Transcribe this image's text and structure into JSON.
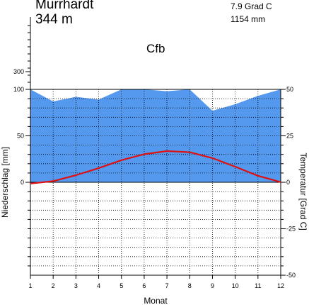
{
  "header": {
    "station": "Murrhardt",
    "elevation": "344 m",
    "mean_temperature": "7.9 Grad C",
    "annual_precipitation": "1154 mm",
    "climate_class": "Cfb"
  },
  "colors": {
    "precipitation_fill": "#5599ee",
    "temperature_line": "#dd1111",
    "axes": "#000000",
    "grid": "#000000"
  },
  "chart_data": {
    "type": "area",
    "title": "",
    "xlabel": "Monat",
    "ylabel_left": "Niederschlag [mm]",
    "ylabel_right": "Temperatur [Grad C]",
    "x": [
      1,
      2,
      3,
      4,
      5,
      6,
      7,
      8,
      9,
      10,
      11,
      12
    ],
    "x_ticks": [
      "1",
      "2",
      "3",
      "4",
      "5",
      "6",
      "7",
      "8",
      "9",
      "10",
      "11",
      "12"
    ],
    "y_left_ticks": [
      "100",
      "50",
      "0",
      "300"
    ],
    "y_right_ticks": [
      "50",
      "25",
      "0",
      "-25",
      "-50"
    ],
    "ylim_left": [
      0,
      100
    ],
    "ylim_right": [
      -50,
      50
    ],
    "grid": true,
    "series": [
      {
        "kind": "precipitation",
        "unit": "mm",
        "values": [
          100,
          87,
          92,
          89,
          100,
          100,
          98,
          100,
          77,
          84,
          93,
          100
        ]
      },
      {
        "kind": "temperature",
        "unit": "Grad C",
        "values": [
          -0.7,
          0.6,
          3.8,
          7.6,
          11.9,
          15.1,
          16.8,
          16.2,
          13.0,
          8.4,
          3.5,
          0.1
        ]
      }
    ]
  }
}
